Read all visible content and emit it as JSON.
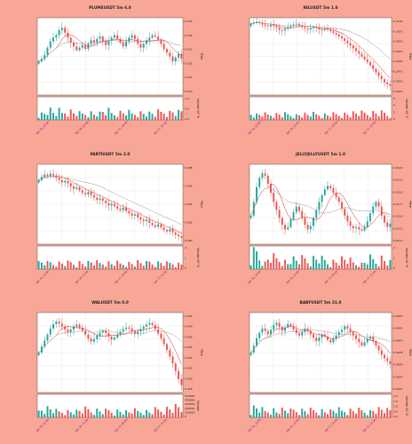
{
  "colors": {
    "background": "#f8a796",
    "up": "#26a69a",
    "down": "#ef5350",
    "ma_fast": "#d62728",
    "ma_slow": "#999999",
    "date_labels": "#800080"
  },
  "chart_data": [
    {
      "type": "candlestick",
      "title": "PLUMEUSDT 5m 6.0",
      "ylabel": "Price",
      "volume_label": "Volume  10^6",
      "price_ticks": [
        "0.105",
        "0.104",
        "0.103",
        "0.102",
        "0.101",
        "0.100"
      ],
      "volume_ticks": [
        "0.0",
        "0.5",
        "1.0"
      ],
      "date_ticks": [
        "Apr 16, 22:00",
        "Apr 16, 23:00",
        "Apr 17, 00:00",
        "Apr 17, 01:00"
      ],
      "ylim": [
        0.0993,
        0.1055
      ],
      "close": [
        0.102,
        0.1022,
        0.1025,
        0.1031,
        0.1036,
        0.1039,
        0.1041,
        0.1045,
        0.1047,
        0.1043,
        0.1039,
        0.1035,
        0.1032,
        0.1029,
        0.1031,
        0.1033,
        0.103,
        0.1034,
        0.1037,
        0.1035,
        0.1038,
        0.104,
        0.1036,
        0.1033,
        0.1037,
        0.1039,
        0.1041,
        0.1038,
        0.1035,
        0.1032,
        0.1036,
        0.1039,
        0.1041,
        0.1038,
        0.1034,
        0.1031,
        0.1034,
        0.1037,
        0.1039,
        0.1041,
        0.104,
        0.1037,
        0.1034,
        0.103,
        0.1027,
        0.1024,
        0.102,
        0.1023,
        0.1026,
        0.1022
      ]
    },
    {
      "type": "candlestick",
      "title": "NILUSDT 5m 1.0",
      "ylabel": "Price",
      "volume_label": "Volume  10^5",
      "price_ticks": [
        "0.3100",
        "0.3075",
        "0.3050",
        "0.3025",
        "0.3000",
        "0.2975",
        "0.2950",
        "0.2925"
      ],
      "volume_ticks": [
        "0",
        "2",
        "4",
        "6"
      ],
      "date_ticks": [
        "Apr 16, 22:00",
        "Apr 16, 23:00",
        "Apr 17, 00:00",
        "Apr 17, 01:00"
      ],
      "ylim": [
        0.2915,
        0.311
      ],
      "close": [
        0.3095,
        0.3098,
        0.31,
        0.3097,
        0.3093,
        0.309,
        0.3088,
        0.3092,
        0.3089,
        0.3085,
        0.308,
        0.3078,
        0.3082,
        0.3086,
        0.309,
        0.3093,
        0.3095,
        0.3091,
        0.3087,
        0.3083,
        0.308,
        0.3084,
        0.3088,
        0.3085,
        0.3081,
        0.3079,
        0.3082,
        0.308,
        0.3076,
        0.3072,
        0.3068,
        0.3063,
        0.3058,
        0.3052,
        0.3046,
        0.304,
        0.3033,
        0.3026,
        0.3019,
        0.3012,
        0.3005,
        0.2998,
        0.299,
        0.2981,
        0.2972,
        0.2963,
        0.2955,
        0.2947,
        0.2942,
        0.2938
      ]
    },
    {
      "type": "candlestick",
      "title": "PARTIUSDT 5m 2.0",
      "ylabel": "Price",
      "volume_label": "Volume  10^6",
      "price_ticks": [
        "0.288",
        "0.286",
        "0.284",
        "0.282",
        "0.280"
      ],
      "volume_ticks": [
        "0",
        "1",
        "2"
      ],
      "date_ticks": [
        "Apr 16, 22:00",
        "Apr 16, 23:00",
        "Apr 17, 00:00",
        "Apr 17, 01:00"
      ],
      "ylim": [
        0.2787,
        0.2888
      ],
      "close": [
        0.2868,
        0.2872,
        0.2875,
        0.2873,
        0.2876,
        0.2874,
        0.2871,
        0.2868,
        0.2865,
        0.2867,
        0.2864,
        0.286,
        0.2857,
        0.2859,
        0.2855,
        0.2852,
        0.285,
        0.2853,
        0.2849,
        0.2846,
        0.2843,
        0.2845,
        0.2842,
        0.2839,
        0.2836,
        0.2838,
        0.2835,
        0.2832,
        0.283,
        0.2833,
        0.2829,
        0.2826,
        0.2823,
        0.2825,
        0.2821,
        0.2818,
        0.2816,
        0.2818,
        0.2814,
        0.2811,
        0.2809,
        0.2812,
        0.2808,
        0.2805,
        0.2803,
        0.2806,
        0.2802,
        0.2799,
        0.2797,
        0.2795
      ]
    },
    {
      "type": "candlestick",
      "title": "JELLYJELLYUSDT 5m 1.0",
      "ylabel": "Price",
      "volume_label": "Volume  10^6",
      "price_ticks": [
        "0.0120",
        "0.0119",
        "0.0118",
        "0.0117",
        "0.0116",
        "0.0115",
        "0.0114"
      ],
      "volume_ticks": [
        "0",
        "1",
        "2"
      ],
      "date_ticks": [
        "Apr 16, 22:00",
        "Apr 16, 23:00",
        "Apr 17, 00:00",
        "Apr 17, 01:00"
      ],
      "ylim": [
        0.01135,
        0.01205
      ],
      "close": [
        0.0116,
        0.01172,
        0.01185,
        0.01193,
        0.01197,
        0.01195,
        0.01188,
        0.0118,
        0.01172,
        0.01165,
        0.01158,
        0.01152,
        0.01148,
        0.0115,
        0.01157,
        0.01163,
        0.01168,
        0.01164,
        0.01158,
        0.01152,
        0.01148,
        0.01151,
        0.01158,
        0.01165,
        0.01172,
        0.01178,
        0.01183,
        0.01186,
        0.01184,
        0.0118,
        0.01176,
        0.01172,
        0.01166,
        0.0116,
        0.01155,
        0.01151,
        0.01149,
        0.0115,
        0.01148,
        0.01147,
        0.0115,
        0.01155,
        0.01162,
        0.01168,
        0.01172,
        0.01168,
        0.0116,
        0.01154,
        0.0115,
        0.01153
      ]
    },
    {
      "type": "candlestick",
      "title": "WALUSDT 5m 0.0",
      "ylabel": "Price",
      "volume_label": "Volume",
      "price_ticks": [
        "0.442",
        "0.440",
        "0.438",
        "0.436",
        "0.434",
        "0.432",
        "0.430",
        "0.428"
      ],
      "volume_ticks": [
        "0",
        "100000",
        "200000",
        "300000",
        "400000",
        "500000"
      ],
      "date_ticks": [
        "Apr 16, 22:00",
        "Apr 16, 23:00",
        "Apr 17, 00:00",
        "Apr 17, 01:00"
      ],
      "ylim": [
        0.427,
        0.443
      ],
      "close": [
        0.435,
        0.4362,
        0.4374,
        0.4386,
        0.4398,
        0.4407,
        0.4412,
        0.4408,
        0.4402,
        0.4396,
        0.4391,
        0.4396,
        0.4402,
        0.4406,
        0.44,
        0.4394,
        0.4386,
        0.4378,
        0.4372,
        0.4377,
        0.4384,
        0.439,
        0.4394,
        0.4389,
        0.4382,
        0.4376,
        0.438,
        0.4386,
        0.4392,
        0.4397,
        0.44,
        0.4398,
        0.4393,
        0.4388,
        0.4392,
        0.4397,
        0.4402,
        0.4406,
        0.4409,
        0.4405,
        0.4397,
        0.4388,
        0.4378,
        0.4367,
        0.4355,
        0.4342,
        0.4328,
        0.4313,
        0.4297,
        0.4285
      ]
    },
    {
      "type": "candlestick",
      "title": "BABYUSDT 5m 31.0",
      "ylabel": "Price",
      "volume_label": "Volume  10^6",
      "price_ticks": [
        "0.0644",
        "0.0642",
        "0.0640",
        "0.0638",
        "0.0636",
        "0.0634",
        "0.0632"
      ],
      "volume_ticks": [
        "0.0",
        "0.5",
        "1.0",
        "1.5",
        "2.0"
      ],
      "date_ticks": [
        "Apr 16, 22:00",
        "Apr 16, 23:00",
        "Apr 17, 00:00",
        "Apr 17, 01:00"
      ],
      "ylim": [
        0.0631,
        0.0645
      ],
      "close": [
        0.0638,
        0.06392,
        0.06405,
        0.06415,
        0.06422,
        0.06418,
        0.06412,
        0.0642,
        0.06428,
        0.06432,
        0.06425,
        0.06418,
        0.06424,
        0.0643,
        0.06426,
        0.0642,
        0.06414,
        0.0641,
        0.06416,
        0.06422,
        0.06418,
        0.06412,
        0.06406,
        0.064,
        0.06406,
        0.06412,
        0.06408,
        0.06402,
        0.06398,
        0.06404,
        0.0641,
        0.06416,
        0.0642,
        0.06426,
        0.06422,
        0.06416,
        0.0641,
        0.06404,
        0.06398,
        0.06392,
        0.06398,
        0.06404,
        0.06408,
        0.064,
        0.06392,
        0.06384,
        0.06376,
        0.0637,
        0.06365,
        0.0636
      ]
    }
  ]
}
